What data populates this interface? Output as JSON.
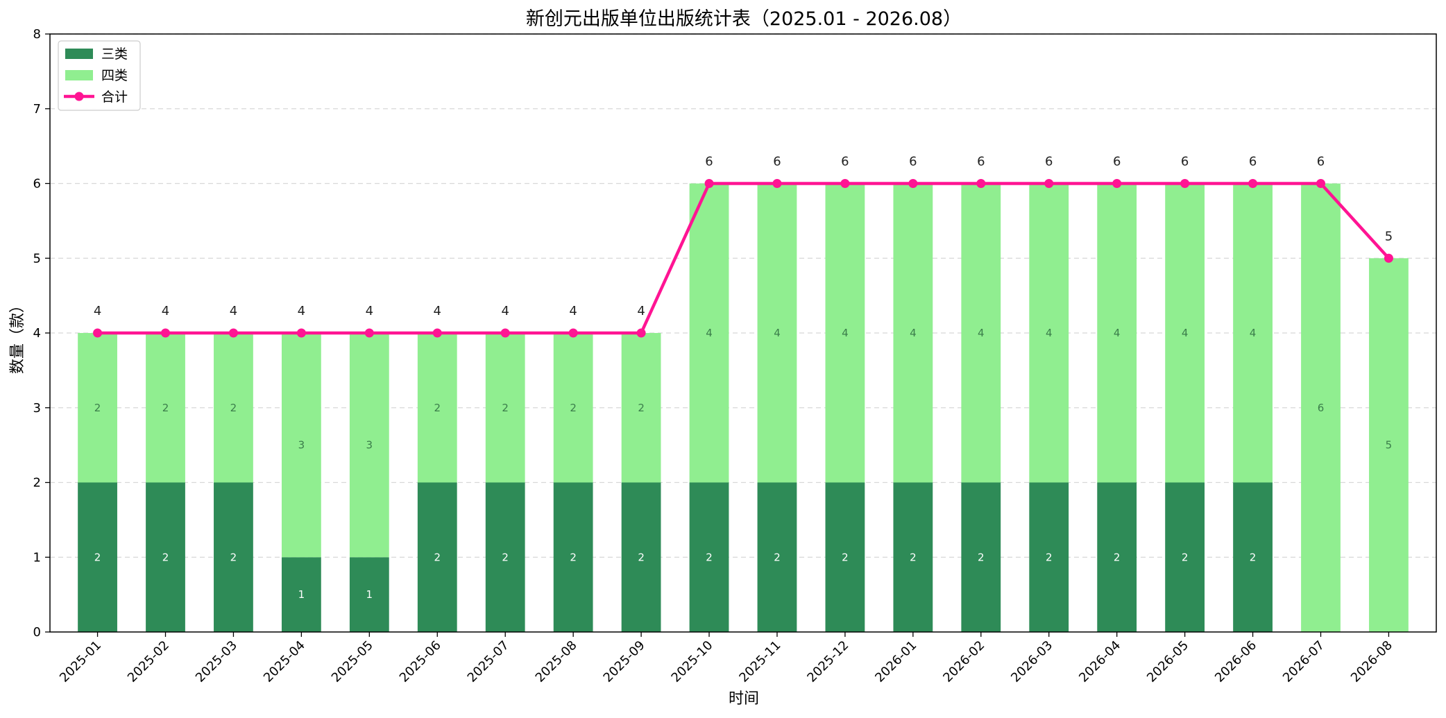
{
  "chart_data": {
    "type": "bar",
    "stacked": true,
    "title": "新创元出版单位出版统计表（2025.01 - 2026.08）",
    "xlabel": "时间",
    "ylabel": "数量（款）",
    "ylim": [
      0,
      8
    ],
    "yticks": [
      0,
      1,
      2,
      3,
      4,
      5,
      6,
      7,
      8
    ],
    "grid": "horizontal dashed",
    "legend_position": "top-left",
    "categories": [
      "2025-01",
      "2025-02",
      "2025-03",
      "2025-04",
      "2025-05",
      "2025-06",
      "2025-07",
      "2025-08",
      "2025-09",
      "2025-10",
      "2025-11",
      "2025-12",
      "2026-01",
      "2026-02",
      "2026-03",
      "2026-04",
      "2026-05",
      "2026-06",
      "2026-07",
      "2026-08"
    ],
    "series": [
      {
        "name": "三类",
        "kind": "bar",
        "color": "#2e8b57",
        "label_color": "#ffffff",
        "values": [
          2,
          2,
          2,
          1,
          1,
          2,
          2,
          2,
          2,
          2,
          2,
          2,
          2,
          2,
          2,
          2,
          2,
          2,
          0,
          0
        ]
      },
      {
        "name": "四类",
        "kind": "bar",
        "color": "#90ee90",
        "label_color": "#3a7d4a",
        "values": [
          2,
          2,
          2,
          3,
          3,
          2,
          2,
          2,
          2,
          4,
          4,
          4,
          4,
          4,
          4,
          4,
          4,
          4,
          6,
          5
        ]
      },
      {
        "name": "合计",
        "kind": "line",
        "color": "#ff1493",
        "values": [
          4,
          4,
          4,
          4,
          4,
          4,
          4,
          4,
          4,
          6,
          6,
          6,
          6,
          6,
          6,
          6,
          6,
          6,
          6,
          5
        ]
      }
    ]
  }
}
